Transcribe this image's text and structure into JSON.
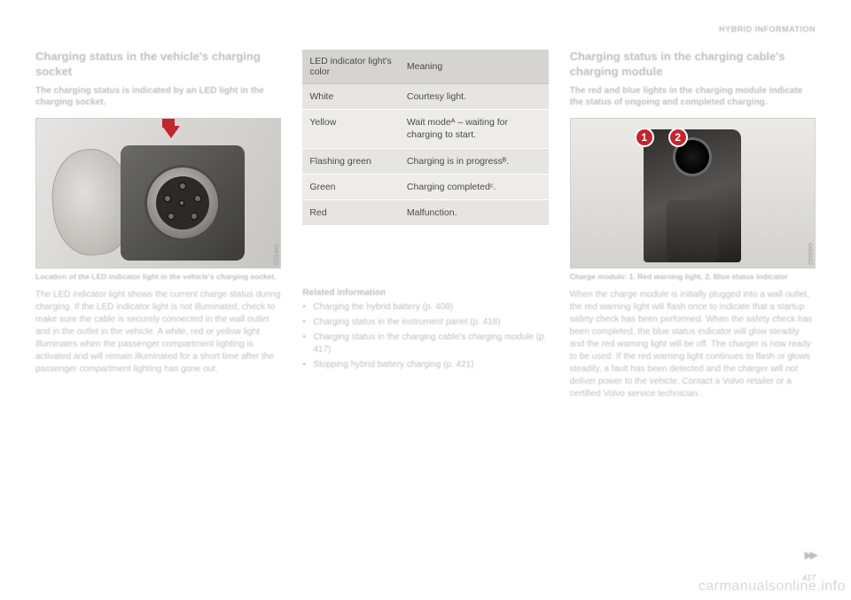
{
  "header": "HYBRID INFORMATION",
  "left": {
    "title": "Charging status in the vehicle's charging socket",
    "intro": "The charging status is indicated by an LED light in the charging socket.",
    "img_code": "G061110",
    "caption": "Location of the LED indicator light in the vehicle's charging socket.",
    "body": "The LED indicator light shows the current charge status during charging. If the LED indicator light is not illuminated, check to make sure the cable is securely connected in the wall outlet and in the outlet in the vehicle. A white, red or yellow light illuminates when the passenger compartment lighting is activated and will remain illuminated for a short time after the passenger compartment lighting has gone out."
  },
  "table": {
    "header_col1": "LED indicator light's color",
    "header_col2": "Meaning",
    "rows": [
      {
        "c1": "White",
        "c2": "Courtesy light."
      },
      {
        "c1": "Yellow",
        "c2": "Wait modeᴬ – waiting for charging to start."
      },
      {
        "c1": "Flashing green",
        "c2": "Charging is in progressᴮ."
      },
      {
        "c1": "Green",
        "c2": "Charging completedᶜ."
      },
      {
        "c1": "Red",
        "c2": "Malfunction."
      }
    ]
  },
  "related": {
    "title": "Related information",
    "items": [
      "Charging the hybrid battery (p. 408)",
      "Charging status in the instrument panel (p. 418)",
      "Charging status in the charging cable's charging module (p. 417)",
      "Stopping hybrid battery charging (p. 421)"
    ]
  },
  "right": {
    "title": "Charging status in the charging cable's charging module",
    "intro": "The red and blue lights in the charging module indicate the status of ongoing and completed charging.",
    "img_code": "G058052",
    "callout1": "1",
    "callout2": "2",
    "caption": "Charge module: 1. Red warning light, 2. Blue status indicator",
    "body": "When the charge module is initially plugged into a wall outlet, the red warning light will flash once to indicate that a startup safety check has been performed. When the safety check has been completed, the blue status indicator will glow steadily and the red warning light will be off. The charger is now ready to be used. If the red warning light continues to flash or glows steadily, a fault has been detected and the charger will not deliver power to the vehicle. Contact a Volvo retailer or a certified Volvo service technician."
  },
  "page_number": "417",
  "watermark": "carmanualsonline.info",
  "colors": {
    "accent_red": "#c2272d",
    "table_header_bg": "#d6d4d0",
    "table_row_bg": "#edecea",
    "blur_text": "#bfbfbf"
  }
}
